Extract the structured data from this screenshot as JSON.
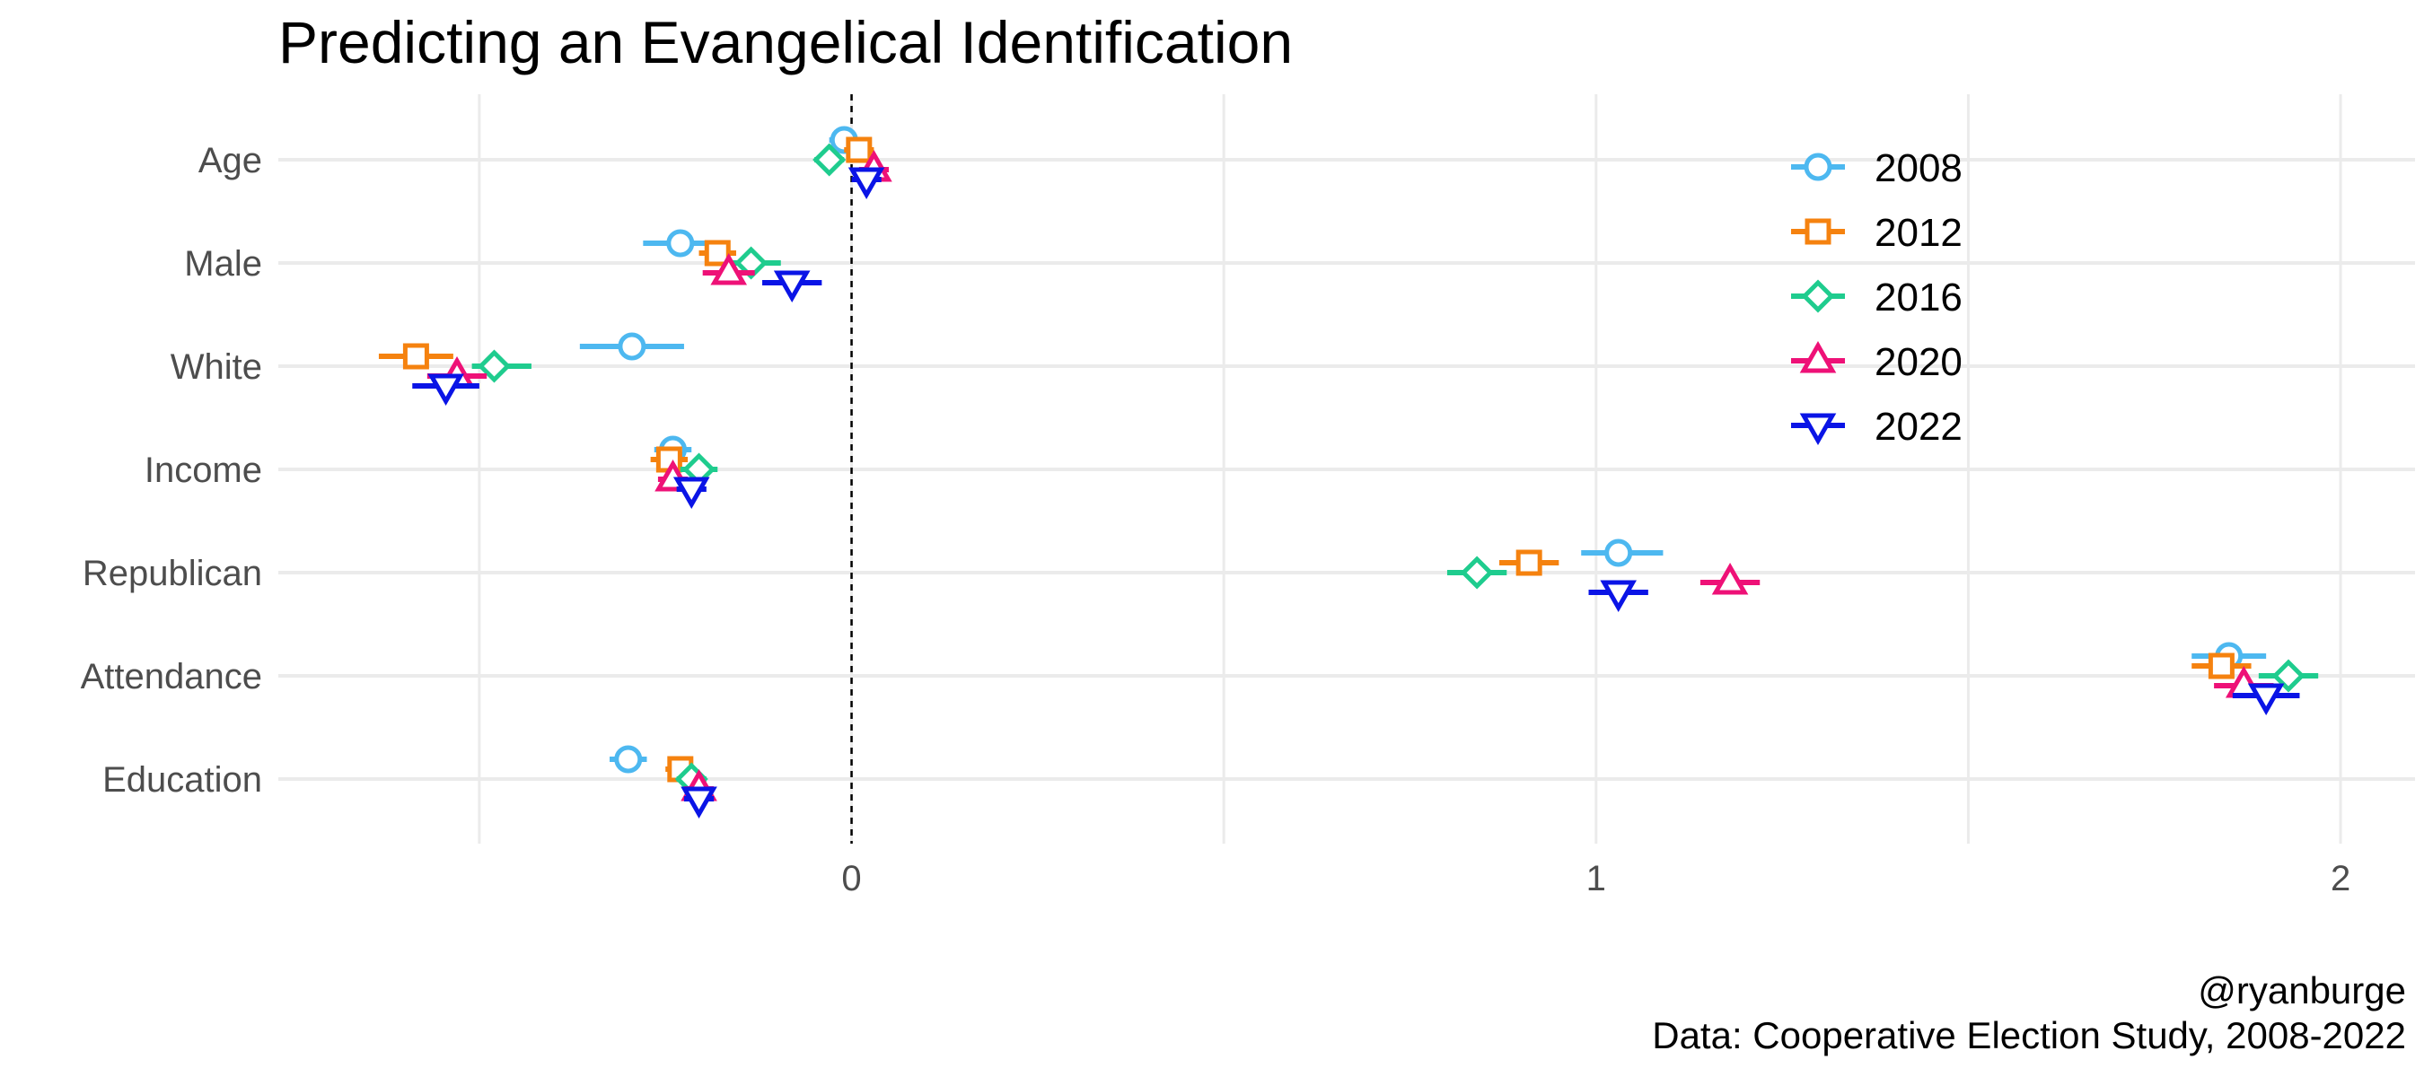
{
  "chart_data": {
    "type": "scatter",
    "title": "Predicting an Evangelical Identification",
    "caption_lines": [
      "@ryanburge",
      "Data: Cooperative Election Study, 2008-2022"
    ],
    "xlabel": "",
    "ylabel": "",
    "xlim": [
      -0.77,
      2.1
    ],
    "x_ticks": [
      0,
      1,
      2
    ],
    "x_tick_labels": [
      "0",
      "1",
      "2"
    ],
    "categories": [
      "Age",
      "Male",
      "White",
      "Income",
      "Republican",
      "Attendance",
      "Education"
    ],
    "grid": true,
    "reference_line": {
      "x": 0,
      "style": "dashed"
    },
    "legend_position": "top-right",
    "series": [
      {
        "name": "2008",
        "marker": "circle",
        "color": "#4db8f0",
        "points": [
          {
            "category": "Age",
            "estimate": -0.01,
            "low": -0.03,
            "high": 0.01
          },
          {
            "category": "Male",
            "estimate": -0.23,
            "low": -0.28,
            "high": -0.18
          },
          {
            "category": "White",
            "estimate": -0.295,
            "low": -0.365,
            "high": -0.225
          },
          {
            "category": "Income",
            "estimate": -0.24,
            "low": -0.265,
            "high": -0.215
          },
          {
            "category": "Republican",
            "estimate": 1.03,
            "low": 0.98,
            "high": 1.09
          },
          {
            "category": "Attendance",
            "estimate": 1.85,
            "low": 1.8,
            "high": 1.9
          },
          {
            "category": "Education",
            "estimate": -0.3,
            "low": -0.325,
            "high": -0.275
          }
        ]
      },
      {
        "name": "2012",
        "marker": "square",
        "color": "#f5820f",
        "points": [
          {
            "category": "Age",
            "estimate": 0.01,
            "low": -0.01,
            "high": 0.03
          },
          {
            "category": "Male",
            "estimate": -0.18,
            "low": -0.205,
            "high": -0.155
          },
          {
            "category": "White",
            "estimate": -0.585,
            "low": -0.635,
            "high": -0.535
          },
          {
            "category": "Income",
            "estimate": -0.245,
            "low": -0.27,
            "high": -0.22
          },
          {
            "category": "Republican",
            "estimate": 0.91,
            "low": 0.87,
            "high": 0.95
          },
          {
            "category": "Attendance",
            "estimate": 1.84,
            "low": 1.8,
            "high": 1.88
          },
          {
            "category": "Education",
            "estimate": -0.23,
            "low": -0.25,
            "high": -0.21
          }
        ]
      },
      {
        "name": "2016",
        "marker": "diamond",
        "color": "#1fcc8e",
        "points": [
          {
            "category": "Age",
            "estimate": -0.03,
            "low": -0.05,
            "high": -0.01
          },
          {
            "category": "Male",
            "estimate": -0.135,
            "low": -0.16,
            "high": -0.095
          },
          {
            "category": "White",
            "estimate": -0.48,
            "low": -0.51,
            "high": -0.43
          },
          {
            "category": "Income",
            "estimate": -0.205,
            "low": -0.23,
            "high": -0.18
          },
          {
            "category": "Republican",
            "estimate": 0.84,
            "low": 0.8,
            "high": 0.88
          },
          {
            "category": "Attendance",
            "estimate": 1.93,
            "low": 1.89,
            "high": 1.97
          },
          {
            "category": "Education",
            "estimate": -0.215,
            "low": -0.235,
            "high": -0.195
          }
        ]
      },
      {
        "name": "2020",
        "marker": "triangle-up",
        "color": "#ee1177",
        "points": [
          {
            "category": "Age",
            "estimate": 0.03,
            "low": 0.01,
            "high": 0.05
          },
          {
            "category": "Male",
            "estimate": -0.165,
            "low": -0.2,
            "high": -0.13
          },
          {
            "category": "White",
            "estimate": -0.53,
            "low": -0.57,
            "high": -0.49
          },
          {
            "category": "Income",
            "estimate": -0.24,
            "low": -0.26,
            "high": -0.22
          },
          {
            "category": "Republican",
            "estimate": 1.18,
            "low": 1.14,
            "high": 1.22
          },
          {
            "category": "Attendance",
            "estimate": 1.87,
            "low": 1.83,
            "high": 1.91
          },
          {
            "category": "Education",
            "estimate": -0.205,
            "low": -0.225,
            "high": -0.185
          }
        ]
      },
      {
        "name": "2022",
        "marker": "triangle-down",
        "color": "#0a14e6",
        "points": [
          {
            "category": "Age",
            "estimate": 0.02,
            "low": 0.0,
            "high": 0.04
          },
          {
            "category": "Male",
            "estimate": -0.08,
            "low": -0.12,
            "high": -0.04
          },
          {
            "category": "White",
            "estimate": -0.545,
            "low": -0.59,
            "high": -0.5
          },
          {
            "category": "Income",
            "estimate": -0.215,
            "low": -0.235,
            "high": -0.195
          },
          {
            "category": "Republican",
            "estimate": 1.03,
            "low": 0.99,
            "high": 1.07
          },
          {
            "category": "Attendance",
            "estimate": 1.9,
            "low": 1.855,
            "high": 1.945
          },
          {
            "category": "Education",
            "estimate": -0.205,
            "low": -0.225,
            "high": -0.185
          }
        ]
      }
    ]
  }
}
